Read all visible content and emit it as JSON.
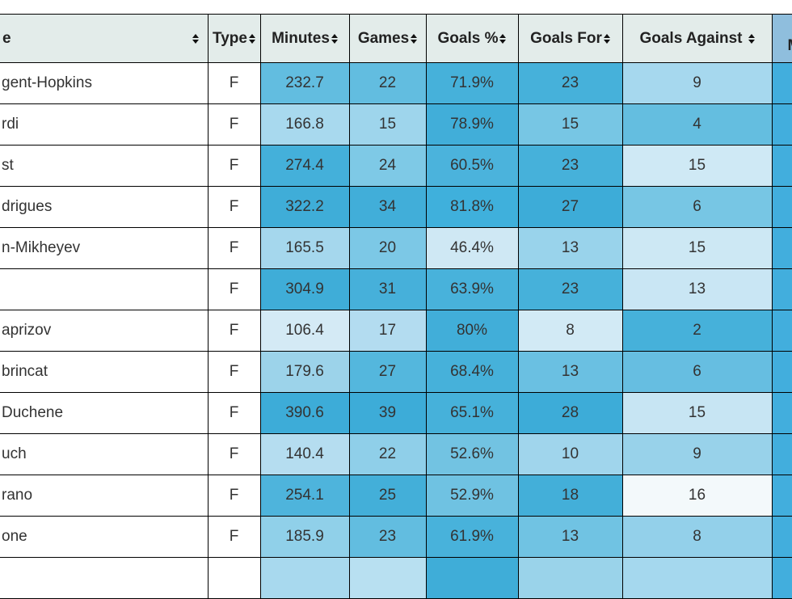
{
  "colors": {
    "header_bg": "#e3ecea",
    "header_extra_bg": "#8fbedd",
    "border": "#000000",
    "header_text": "#222222",
    "cell_text": "#333333",
    "row_bg": "#ffffff",
    "heatmap_dark": "#3dacd8",
    "heatmap_light": "#f3f9fb"
  },
  "table": {
    "columns": {
      "name": {
        "label": "e",
        "sortable": true
      },
      "type": {
        "label": "Type",
        "sortable": true
      },
      "minutes": {
        "label": "Minutes",
        "sortable": true
      },
      "games": {
        "label": "Games",
        "sortable": true
      },
      "goals_pct": {
        "label": "Goals %",
        "sortable": true
      },
      "goals_for": {
        "label": "Goals For",
        "sortable": true
      },
      "goals_against": {
        "label": "Goals Against",
        "sortable": true
      },
      "extra": {
        "label": "M",
        "sortable": false
      }
    },
    "rows": [
      {
        "name": "gent-Hopkins",
        "type": "F",
        "minutes": {
          "v": "232.7",
          "c": "#62bde0"
        },
        "games": {
          "v": "22",
          "c": "#62bde0"
        },
        "goals_pct": {
          "v": "71.9%",
          "c": "#46b1da"
        },
        "goals_for": {
          "v": "23",
          "c": "#46b1da"
        },
        "goals_against": {
          "v": "9",
          "c": "#a6d8ee"
        },
        "extra_color": "#42aedd"
      },
      {
        "name": "rdi",
        "type": "F",
        "minutes": {
          "v": "166.8",
          "c": "#a8d9ee"
        },
        "games": {
          "v": "15",
          "c": "#9ed5ec"
        },
        "goals_pct": {
          "v": "78.9%",
          "c": "#41aed9"
        },
        "goals_for": {
          "v": "15",
          "c": "#77c6e4"
        },
        "goals_against": {
          "v": "4",
          "c": "#64bee0"
        },
        "extra_color": "#42aedd"
      },
      {
        "name": "st",
        "type": "F",
        "minutes": {
          "v": "274.4",
          "c": "#44b0da"
        },
        "games": {
          "v": "24",
          "c": "#7ec9e6"
        },
        "goals_pct": {
          "v": "60.5%",
          "c": "#4bb3dc"
        },
        "goals_for": {
          "v": "23",
          "c": "#46b1da"
        },
        "goals_against": {
          "v": "15",
          "c": "#cfe9f5"
        },
        "extra_color": "#42aedd"
      },
      {
        "name": "drigues",
        "type": "F",
        "minutes": {
          "v": "322.2",
          "c": "#3fadd8"
        },
        "games": {
          "v": "34",
          "c": "#41aed9"
        },
        "goals_pct": {
          "v": "81.8%",
          "c": "#3fb0dc"
        },
        "goals_for": {
          "v": "27",
          "c": "#3dacd8"
        },
        "goals_against": {
          "v": "6",
          "c": "#77c6e4"
        },
        "extra_color": "#42aedd"
      },
      {
        "name": "n-Mikheyev",
        "type": "F",
        "minutes": {
          "v": "165.5",
          "c": "#a5d7ed"
        },
        "games": {
          "v": "20",
          "c": "#7cc8e6"
        },
        "goals_pct": {
          "v": "46.4%",
          "c": "#cfe8f4"
        },
        "goals_for": {
          "v": "13",
          "c": "#99d3eb"
        },
        "goals_against": {
          "v": "15",
          "c": "#cde8f4"
        },
        "extra_color": "#42aedd"
      },
      {
        "name": "",
        "type": "F",
        "minutes": {
          "v": "304.9",
          "c": "#3fadd8"
        },
        "games": {
          "v": "31",
          "c": "#46b0da"
        },
        "goals_pct": {
          "v": "63.9%",
          "c": "#48b2db"
        },
        "goals_for": {
          "v": "23",
          "c": "#46b1da"
        },
        "goals_against": {
          "v": "13",
          "c": "#c9e6f4"
        },
        "extra_color": "#42aedd"
      },
      {
        "name": "aprizov",
        "type": "F",
        "minutes": {
          "v": "106.4",
          "c": "#d4eaf5"
        },
        "games": {
          "v": "17",
          "c": "#b3dcf0"
        },
        "goals_pct": {
          "v": "80%",
          "c": "#41aed9"
        },
        "goals_for": {
          "v": "8",
          "c": "#d2eaf5"
        },
        "goals_against": {
          "v": "2",
          "c": "#46b1da"
        },
        "extra_color": "#42aedd"
      },
      {
        "name": "brincat",
        "type": "F",
        "minutes": {
          "v": "179.6",
          "c": "#9cd3ea"
        },
        "games": {
          "v": "27",
          "c": "#54b7dd"
        },
        "goals_pct": {
          "v": "68.4%",
          "c": "#46b1da"
        },
        "goals_for": {
          "v": "13",
          "c": "#6ac0e2"
        },
        "goals_against": {
          "v": "6",
          "c": "#66bee1"
        },
        "extra_color": "#42aedd"
      },
      {
        "name": "Duchene",
        "type": "F",
        "minutes": {
          "v": "390.6",
          "c": "#3dacd8"
        },
        "games": {
          "v": "39",
          "c": "#3dacd8"
        },
        "goals_pct": {
          "v": "65.1%",
          "c": "#46b1da"
        },
        "goals_for": {
          "v": "28",
          "c": "#3dacd8"
        },
        "goals_against": {
          "v": "15",
          "c": "#c7e5f3"
        },
        "extra_color": "#42aedd"
      },
      {
        "name": "uch",
        "type": "F",
        "minutes": {
          "v": "140.4",
          "c": "#b5ddf0"
        },
        "games": {
          "v": "22",
          "c": "#8fcfe9"
        },
        "goals_pct": {
          "v": "52.6%",
          "c": "#72c3e2"
        },
        "goals_for": {
          "v": "10",
          "c": "#a0d5ec"
        },
        "goals_against": {
          "v": "9",
          "c": "#98d2ea"
        },
        "extra_color": "#42aedd"
      },
      {
        "name": "rano",
        "type": "F",
        "minutes": {
          "v": "254.1",
          "c": "#4eb4dc"
        },
        "games": {
          "v": "25",
          "c": "#43afd9"
        },
        "goals_pct": {
          "v": "52.9%",
          "c": "#6fc2e2"
        },
        "goals_for": {
          "v": "18",
          "c": "#43afd9"
        },
        "goals_against": {
          "v": "16",
          "c": "#f3f9fb"
        },
        "extra_color": "#42aedd"
      },
      {
        "name": "one",
        "type": "F",
        "minutes": {
          "v": "185.9",
          "c": "#90d0e9"
        },
        "games": {
          "v": "23",
          "c": "#62bde0"
        },
        "goals_pct": {
          "v": "61.9%",
          "c": "#48b2db"
        },
        "goals_for": {
          "v": "13",
          "c": "#70c3e3"
        },
        "goals_against": {
          "v": "8",
          "c": "#93d0ea"
        },
        "extra_color": "#42aedd"
      },
      {
        "name": "",
        "type": "",
        "minutes": {
          "v": "",
          "c": "#a8d9ee"
        },
        "games": {
          "v": "",
          "c": "#b8e0f1"
        },
        "goals_pct": {
          "v": "",
          "c": "#3fadd8"
        },
        "goals_for": {
          "v": "",
          "c": "#9ad3ea"
        },
        "goals_against": {
          "v": "",
          "c": "#a5d8ee"
        },
        "extra_color": "#42aedd"
      }
    ]
  }
}
